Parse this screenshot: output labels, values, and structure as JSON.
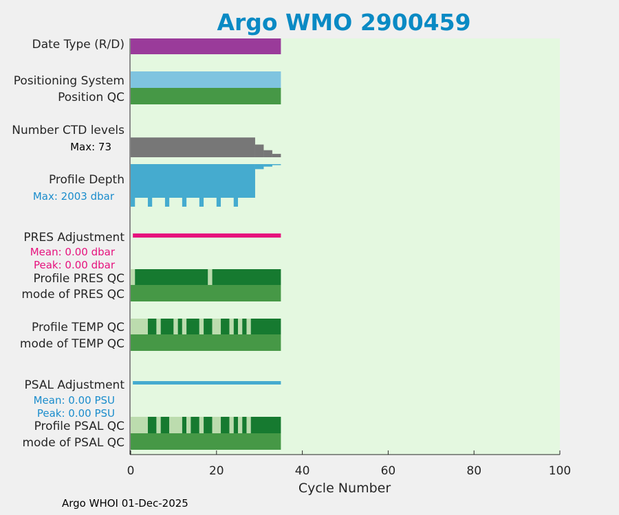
{
  "footer": "Argo WHOI 01-Dec-2025",
  "colors": {
    "title": "#0a8ac4",
    "plot_bg": "#e4f8e0",
    "date_type": "#9a3b9a",
    "positioning": "#7fc4e0",
    "qc_mid_green": "#469846",
    "qc_dark_green": "#167a30",
    "qc_light_green": "#bcdcae",
    "ctd_gray": "#777777",
    "profile_blue": "#45abcf",
    "pres_adj_magenta": "#e6127d",
    "psal_adj_blue": "#45abcf",
    "sub_blue": "#1a8ccc"
  },
  "chart_data": {
    "type": "bar",
    "title": "Argo WMO 2900459",
    "xlabel": "Cycle Number",
    "xlim": [
      0,
      100
    ],
    "xticks": [
      "0",
      "20",
      "40",
      "60",
      "80",
      "100"
    ],
    "rows": [
      {
        "label": "Date Type (R/D)",
        "cycles": [
          0,
          35
        ],
        "color": "date_type"
      },
      {
        "label": "Positioning System",
        "cycles": [
          0,
          35
        ],
        "color": "positioning"
      },
      {
        "label": "Position QC",
        "cycles": [
          0,
          35
        ],
        "color": "qc_mid_green"
      },
      {
        "label": "Number CTD levels",
        "sublabel": "Max: 73",
        "max": 73,
        "levels": [
          {
            "cycles": [
              0,
              29
            ],
            "value": 70
          },
          {
            "cycles": [
              29,
              31
            ],
            "value": 45
          },
          {
            "cycles": [
              31,
              33
            ],
            "value": 25
          },
          {
            "cycles": [
              33,
              35
            ],
            "value": 12
          }
        ]
      },
      {
        "label": "Profile Depth",
        "sublabel": "Max: 2003 dbar",
        "max": 2003,
        "depths": [
          {
            "cycles": [
              0,
              29
            ],
            "value": 2003
          },
          {
            "cycles": [
              29,
              31
            ],
            "value": 300
          },
          {
            "cycles": [
              31,
              33
            ],
            "value": 150
          },
          {
            "cycles": [
              33,
              35
            ],
            "value": 60
          }
        ],
        "deep_cycles": [
          0,
          4,
          8,
          12,
          16,
          20,
          24
        ]
      },
      {
        "label": "PRES Adjustment",
        "sublabels": [
          "Mean: 0.00 dbar",
          "Peak: 0.00 dbar"
        ],
        "cycles": [
          0.5,
          35
        ]
      },
      {
        "label": "Profile PRES QC",
        "segments": [
          {
            "cycles": [
              0,
              1
            ],
            "c": "qc_light_green"
          },
          {
            "cycles": [
              1,
              18
            ],
            "c": "qc_dark_green"
          },
          {
            "cycles": [
              18,
              19
            ],
            "c": "qc_light_green"
          },
          {
            "cycles": [
              19,
              35
            ],
            "c": "qc_dark_green"
          }
        ]
      },
      {
        "label": "mode of PRES QC",
        "cycles": [
          0,
          35
        ],
        "color": "qc_mid_green"
      },
      {
        "label": "Profile TEMP QC",
        "segments": [
          {
            "cycles": [
              0,
              4
            ],
            "c": "qc_light_green"
          },
          {
            "cycles": [
              4,
              6
            ],
            "c": "qc_dark_green"
          },
          {
            "cycles": [
              6,
              7
            ],
            "c": "qc_light_green"
          },
          {
            "cycles": [
              7,
              10
            ],
            "c": "qc_dark_green"
          },
          {
            "cycles": [
              10,
              11
            ],
            "c": "qc_light_green"
          },
          {
            "cycles": [
              11,
              12
            ],
            "c": "qc_dark_green"
          },
          {
            "cycles": [
              12,
              13
            ],
            "c": "qc_light_green"
          },
          {
            "cycles": [
              13,
              16
            ],
            "c": "qc_dark_green"
          },
          {
            "cycles": [
              16,
              17
            ],
            "c": "qc_light_green"
          },
          {
            "cycles": [
              17,
              19
            ],
            "c": "qc_dark_green"
          },
          {
            "cycles": [
              19,
              21
            ],
            "c": "qc_light_green"
          },
          {
            "cycles": [
              21,
              23
            ],
            "c": "qc_dark_green"
          },
          {
            "cycles": [
              23,
              24
            ],
            "c": "qc_light_green"
          },
          {
            "cycles": [
              24,
              25
            ],
            "c": "qc_dark_green"
          },
          {
            "cycles": [
              25,
              26
            ],
            "c": "qc_light_green"
          },
          {
            "cycles": [
              26,
              27
            ],
            "c": "qc_dark_green"
          },
          {
            "cycles": [
              27,
              28
            ],
            "c": "qc_light_green"
          },
          {
            "cycles": [
              28,
              35
            ],
            "c": "qc_dark_green"
          }
        ]
      },
      {
        "label": "mode of TEMP QC",
        "cycles": [
          0,
          35
        ],
        "color": "qc_mid_green"
      },
      {
        "label": "PSAL Adjustment",
        "sublabels": [
          "Mean: 0.00 PSU",
          "Peak: 0.00 PSU"
        ],
        "cycles": [
          0.5,
          35
        ]
      },
      {
        "label": "Profile PSAL QC",
        "segments": [
          {
            "cycles": [
              0,
              4
            ],
            "c": "qc_light_green"
          },
          {
            "cycles": [
              4,
              6
            ],
            "c": "qc_dark_green"
          },
          {
            "cycles": [
              6,
              7
            ],
            "c": "qc_light_green"
          },
          {
            "cycles": [
              7,
              9
            ],
            "c": "qc_dark_green"
          },
          {
            "cycles": [
              9,
              12
            ],
            "c": "qc_light_green"
          },
          {
            "cycles": [
              12,
              13
            ],
            "c": "qc_dark_green"
          },
          {
            "cycles": [
              13,
              14
            ],
            "c": "qc_light_green"
          },
          {
            "cycles": [
              14,
              16
            ],
            "c": "qc_dark_green"
          },
          {
            "cycles": [
              16,
              17
            ],
            "c": "qc_light_green"
          },
          {
            "cycles": [
              17,
              19
            ],
            "c": "qc_dark_green"
          },
          {
            "cycles": [
              19,
              21
            ],
            "c": "qc_light_green"
          },
          {
            "cycles": [
              21,
              23
            ],
            "c": "qc_dark_green"
          },
          {
            "cycles": [
              23,
              24
            ],
            "c": "qc_light_green"
          },
          {
            "cycles": [
              24,
              25
            ],
            "c": "qc_dark_green"
          },
          {
            "cycles": [
              25,
              26
            ],
            "c": "qc_light_green"
          },
          {
            "cycles": [
              26,
              27
            ],
            "c": "qc_dark_green"
          },
          {
            "cycles": [
              27,
              28
            ],
            "c": "qc_light_green"
          },
          {
            "cycles": [
              28,
              35
            ],
            "c": "qc_dark_green"
          }
        ]
      },
      {
        "label": "mode of PSAL QC",
        "cycles": [
          0,
          35
        ],
        "color": "qc_mid_green"
      }
    ]
  }
}
